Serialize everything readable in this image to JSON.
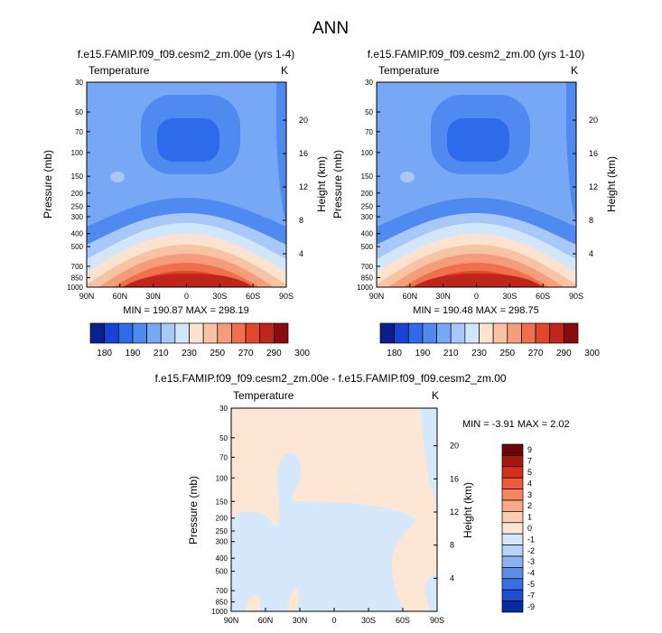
{
  "page_title": "ANN",
  "chart_data": [
    {
      "type": "heatmap",
      "title": "f.e15.FAMIP.f09_f09.cesm2_zm.00e (yrs 1-4)",
      "variable": "Temperature",
      "units": "K",
      "ylabel": "Pressure (mb)",
      "y2label": "Height (km)",
      "x_ticks": [
        "90N",
        "60N",
        "30N",
        "0",
        "30S",
        "60S",
        "90S"
      ],
      "y_ticks": [
        "30",
        "50",
        "70",
        "100",
        "150",
        "200",
        "250",
        "300",
        "400",
        "500",
        "700",
        "850",
        "1000"
      ],
      "y2_ticks": [
        "20",
        "16",
        "12",
        "8",
        "4"
      ],
      "stats": "MIN = 190.87  MAX = 298.19",
      "min": 190.87,
      "max": 298.19,
      "colorbar_labels": [
        "180",
        "190",
        "210",
        "230",
        "250",
        "270",
        "290",
        "300"
      ]
    },
    {
      "type": "heatmap",
      "title": "f.e15.FAMIP.f09_f09.cesm2_zm.00 (yrs 1-10)",
      "variable": "Temperature",
      "units": "K",
      "ylabel": "Pressure (mb)",
      "y2label": "Height (km)",
      "x_ticks": [
        "90N",
        "60N",
        "30N",
        "0",
        "30S",
        "60S",
        "90S"
      ],
      "y_ticks": [
        "30",
        "50",
        "70",
        "100",
        "150",
        "200",
        "250",
        "300",
        "400",
        "500",
        "700",
        "850",
        "1000"
      ],
      "y2_ticks": [
        "20",
        "16",
        "12",
        "8",
        "4"
      ],
      "stats": "MIN = 190.48  MAX = 298.75",
      "min": 190.48,
      "max": 298.75,
      "colorbar_labels": [
        "180",
        "190",
        "210",
        "230",
        "250",
        "270",
        "290",
        "300"
      ]
    },
    {
      "type": "heatmap",
      "title": "f.e15.FAMIP.f09_f09.cesm2_zm.00e - f.e15.FAMIP.f09_f09.cesm2_zm.00",
      "variable": "Temperature",
      "units": "K",
      "ylabel": "Pressure (mb)",
      "y2label": "Height (km)",
      "x_ticks": [
        "90N",
        "60N",
        "30N",
        "0",
        "30S",
        "60S",
        "90S"
      ],
      "y_ticks": [
        "30",
        "50",
        "70",
        "100",
        "150",
        "200",
        "250",
        "300",
        "400",
        "500",
        "700",
        "850",
        "1000"
      ],
      "y2_ticks": [
        "20",
        "16",
        "12",
        "8",
        "4"
      ],
      "stats": "MIN =  -3.91  MAX =   2.02",
      "min": -3.91,
      "max": 2.02,
      "colorbar_labels": [
        "9",
        "7",
        "5",
        "4",
        "3",
        "2",
        "1",
        "0",
        "-1",
        "-2",
        "-3",
        "-4",
        "-5",
        "-7",
        "-9"
      ]
    }
  ],
  "colors": {
    "abs_scale": [
      "#0a1f8f",
      "#1744d6",
      "#2c6be9",
      "#4f8af0",
      "#77a8f5",
      "#a7c8f8",
      "#d2e6fb",
      "#fbe3cf",
      "#f8c3a3",
      "#f59c7a",
      "#ef6f4e",
      "#e0472c",
      "#c0251b",
      "#8a0b0b"
    ],
    "diff_scale": [
      "#6b0606",
      "#a8160f",
      "#d52e1b",
      "#ef5b38",
      "#f6855f",
      "#f8a987",
      "#fbccb2",
      "#fde6d4",
      "#d6e8fb",
      "#b6d3f8",
      "#8bb2f1",
      "#5f8ee9",
      "#3a6ee3",
      "#1a4fd6",
      "#0b2a9e"
    ],
    "diff_pos": "#fde6d4",
    "diff_neg": "#d6e8fb"
  }
}
